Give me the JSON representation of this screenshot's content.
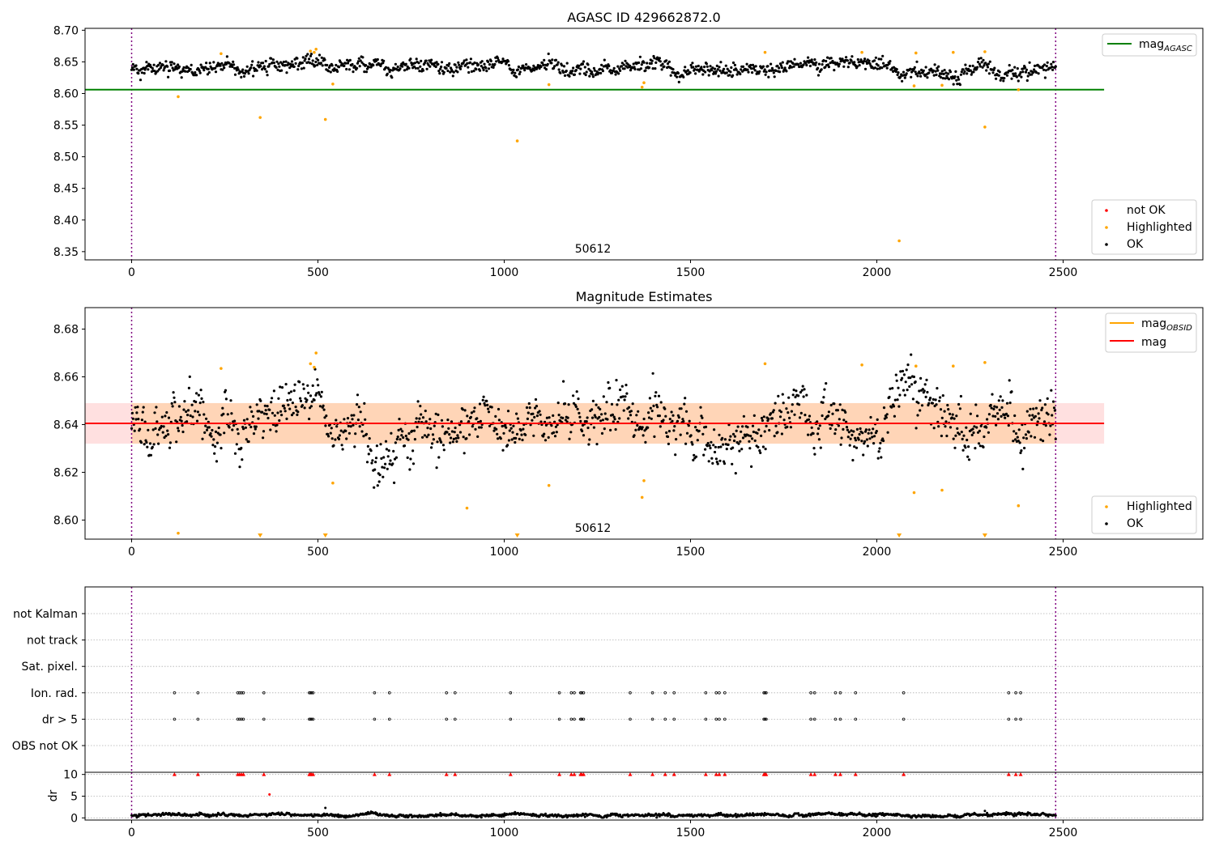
{
  "chart_data": [
    {
      "type": "scatter",
      "title": "AGASC ID 429662872.0",
      "x_ticks": [
        0,
        500,
        1000,
        1500,
        2000,
        2500
      ],
      "y_ticks": [
        "8.35",
        "8.40",
        "8.45",
        "8.50",
        "8.55",
        "8.60",
        "8.65",
        "8.70"
      ],
      "xlim": [
        -125,
        2875
      ],
      "ylim": [
        8.337,
        8.703
      ],
      "obsid_label": "50612",
      "obs_boundaries": [
        0,
        2480
      ],
      "hlines": [
        {
          "name": "mag_AGASC",
          "y": 8.606,
          "x": [
            -125,
            2610
          ],
          "color": "#008000"
        }
      ],
      "ok_series": {
        "name": "OK",
        "color": "#000000",
        "n_points": 1240,
        "x_range": [
          0,
          2480
        ],
        "y_mean": 8.64,
        "y_spread": 0.008
      },
      "highlighted": {
        "name": "Highlighted",
        "color": "#ffa500",
        "points": [
          [
            125,
            8.595
          ],
          [
            240,
            8.663
          ],
          [
            345,
            8.562
          ],
          [
            480,
            8.667
          ],
          [
            490,
            8.665
          ],
          [
            495,
            8.67
          ],
          [
            520,
            8.559
          ],
          [
            540,
            8.615
          ],
          [
            1035,
            8.525
          ],
          [
            1120,
            8.614
          ],
          [
            1370,
            8.61
          ],
          [
            1375,
            8.617
          ],
          [
            1700,
            8.665
          ],
          [
            1960,
            8.665
          ],
          [
            2060,
            8.367
          ],
          [
            2100,
            8.612
          ],
          [
            2105,
            8.664
          ],
          [
            2175,
            8.613
          ],
          [
            2205,
            8.665
          ],
          [
            2290,
            8.547
          ],
          [
            2290,
            8.666
          ],
          [
            2380,
            8.606
          ]
        ]
      },
      "not_ok": {
        "name": "not OK",
        "color": "#ff0000",
        "points": []
      },
      "legend_lines": [
        {
          "label": "mag",
          "sub": "AGASC",
          "color": "#008000"
        }
      ],
      "legend_points": [
        {
          "label": "not OK",
          "color": "#ff0000"
        },
        {
          "label": "Highlighted",
          "color": "#ffa500"
        },
        {
          "label": "OK",
          "color": "#000000"
        }
      ]
    },
    {
      "type": "scatter",
      "title": "Magnitude Estimates",
      "x_ticks": [
        0,
        500,
        1000,
        1500,
        2000,
        2500
      ],
      "y_ticks": [
        "8.60",
        "8.62",
        "8.64",
        "8.66",
        "8.68"
      ],
      "xlim": [
        -125,
        2875
      ],
      "ylim": [
        8.592,
        8.689
      ],
      "obsid_label": "50612",
      "obs_boundaries": [
        0,
        2480
      ],
      "mag": {
        "name": "mag",
        "y": 8.6405,
        "band": [
          8.632,
          8.649
        ],
        "x": [
          -125,
          2610
        ],
        "color": "#ff0000"
      },
      "mag_obsid": {
        "name": "mag_OBSID",
        "y": 8.6405,
        "band": [
          8.632,
          8.649
        ],
        "x": [
          0,
          2480
        ],
        "color": "#ffa500"
      },
      "ok_series": {
        "name": "OK",
        "color": "#000000",
        "n_points": 1240,
        "x_range": [
          0,
          2480
        ],
        "y_mean": 8.64,
        "y_spread": 0.0075
      },
      "highlighted": {
        "name": "Highlighted",
        "color": "#ffa500",
        "points": [
          [
            125,
            8.5945
          ],
          [
            240,
            8.6635
          ],
          [
            480,
            8.6655
          ],
          [
            490,
            8.664
          ],
          [
            495,
            8.67
          ],
          [
            540,
            8.6155
          ],
          [
            900,
            8.605
          ],
          [
            1120,
            8.6145
          ],
          [
            1370,
            8.6095
          ],
          [
            1375,
            8.6165
          ],
          [
            1700,
            8.6655
          ],
          [
            1960,
            8.665
          ],
          [
            2100,
            8.6115
          ],
          [
            2105,
            8.6645
          ],
          [
            2175,
            8.6125
          ],
          [
            2205,
            8.6645
          ],
          [
            2290,
            8.666
          ],
          [
            2380,
            8.606
          ]
        ]
      },
      "below_range_markers": [
        345,
        520,
        1035,
        2060,
        2290
      ],
      "legend_lines": [
        {
          "label": "mag",
          "sub": "OBSID",
          "color": "#ffa500"
        },
        {
          "label": "mag",
          "sub": "",
          "color": "#ff0000"
        }
      ],
      "legend_points": [
        {
          "label": "Highlighted",
          "color": "#ffa500"
        },
        {
          "label": "OK",
          "color": "#000000"
        }
      ]
    },
    {
      "type": "scatter",
      "flag_labels": [
        "not Kalman",
        "not track",
        "Sat. pixel.",
        "Ion. rad.",
        "dr > 5",
        "OBS not OK"
      ],
      "flag_events": [
        115,
        178,
        285,
        290,
        295,
        300,
        355,
        477,
        480,
        483,
        487,
        652,
        692,
        845,
        868,
        1017,
        1148,
        1180,
        1188,
        1205,
        1208,
        1213,
        1338,
        1398,
        1432,
        1456,
        1541,
        1569,
        1577,
        1592,
        1697,
        1700,
        1703,
        1823,
        1833,
        1889,
        1902,
        1943,
        2072,
        2354,
        2373,
        2386
      ],
      "dr_ylabel": "dr",
      "dr_ticks": [
        "0",
        "5",
        "10"
      ],
      "dr_ylim": [
        -0.5,
        10.5
      ],
      "dr_clip_value": 10,
      "dr_outliers": [
        [
          370,
          5.4
        ],
        [
          520,
          2.3
        ],
        [
          2290,
          1.6
        ]
      ],
      "dr_series": {
        "n_points": 1240,
        "x_range": [
          0,
          2480
        ],
        "mean": 0.6,
        "spread": 0.3
      },
      "x_ticks": [
        0,
        500,
        1000,
        1500,
        2000,
        2500
      ],
      "xlim": [
        -125,
        2875
      ],
      "obs_boundaries": [
        0,
        2480
      ]
    }
  ]
}
